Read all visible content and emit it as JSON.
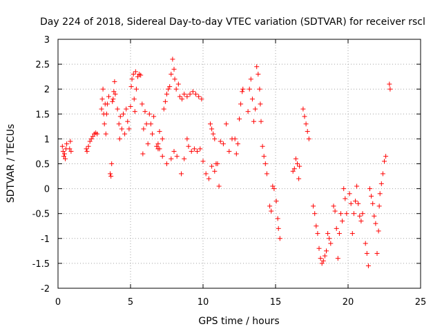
{
  "chart_data": {
    "type": "scatter",
    "title": "Day 224 of 2018, Sidereal Day-to-day VTEC variation (SDTVAR) for receiver rscl",
    "xlabel": "GPS time / hours",
    "ylabel": "SDTVAR / TECUs",
    "xlim": [
      0,
      25
    ],
    "ylim": [
      -2,
      3
    ],
    "xticks": [
      0,
      5,
      10,
      15,
      20,
      25
    ],
    "yticks": [
      -2,
      -1.5,
      -1,
      -0.5,
      0,
      0.5,
      1,
      1.5,
      2,
      2.5,
      3
    ],
    "xtick_labels": [
      "0",
      "5",
      "10",
      "15",
      "20",
      "25"
    ],
    "ytick_labels": [
      "-2",
      "-1.5",
      "-1",
      "-0.5",
      "0",
      "0.5",
      "1",
      "1.5",
      "2",
      "2.5",
      "3"
    ],
    "grid": true,
    "marker": "+",
    "color": "#ff0000",
    "series": [
      {
        "name": "SDTVAR",
        "points": [
          [
            0.3,
            0.85
          ],
          [
            0.35,
            0.75
          ],
          [
            0.4,
            0.65
          ],
          [
            0.45,
            0.7
          ],
          [
            0.5,
            0.6
          ],
          [
            0.55,
            0.8
          ],
          [
            0.6,
            0.9
          ],
          [
            0.8,
            0.8
          ],
          [
            0.85,
            0.95
          ],
          [
            0.9,
            0.75
          ],
          [
            1.95,
            0.8
          ],
          [
            2.0,
            0.75
          ],
          [
            2.1,
            0.85
          ],
          [
            2.2,
            0.95
          ],
          [
            2.3,
            1.0
          ],
          [
            2.4,
            1.05
          ],
          [
            2.5,
            1.1
          ],
          [
            2.6,
            1.12
          ],
          [
            2.7,
            1.1
          ],
          [
            3.0,
            1.6
          ],
          [
            3.05,
            1.8
          ],
          [
            3.1,
            2.0
          ],
          [
            3.15,
            1.5
          ],
          [
            3.2,
            1.3
          ],
          [
            3.25,
            1.7
          ],
          [
            3.3,
            1.1
          ],
          [
            3.35,
            1.5
          ],
          [
            3.4,
            1.7
          ],
          [
            3.5,
            1.85
          ],
          [
            3.6,
            0.3
          ],
          [
            3.65,
            0.25
          ],
          [
            3.7,
            0.5
          ],
          [
            3.75,
            1.75
          ],
          [
            3.8,
            1.8
          ],
          [
            3.85,
            1.95
          ],
          [
            3.9,
            2.15
          ],
          [
            3.95,
            1.9
          ],
          [
            4.1,
            1.6
          ],
          [
            4.2,
            1.3
          ],
          [
            4.25,
            1.0
          ],
          [
            4.3,
            1.45
          ],
          [
            4.4,
            1.2
          ],
          [
            4.5,
            1.5
          ],
          [
            4.6,
            1.1
          ],
          [
            4.7,
            1.6
          ],
          [
            4.8,
            1.35
          ],
          [
            4.9,
            1.2
          ],
          [
            5.0,
            1.65
          ],
          [
            5.05,
            2.05
          ],
          [
            5.1,
            2.2
          ],
          [
            5.2,
            2.3
          ],
          [
            5.25,
            1.8
          ],
          [
            5.3,
            1.55
          ],
          [
            5.35,
            2.35
          ],
          [
            5.4,
            2.0
          ],
          [
            5.5,
            2.25
          ],
          [
            5.6,
            2.3
          ],
          [
            5.7,
            2.28
          ],
          [
            5.8,
            1.7
          ],
          [
            5.85,
            0.7
          ],
          [
            5.9,
            1.2
          ],
          [
            6.0,
            1.55
          ],
          [
            6.1,
            1.3
          ],
          [
            6.2,
            0.9
          ],
          [
            6.3,
            1.5
          ],
          [
            6.4,
            1.3
          ],
          [
            6.5,
            1.1
          ],
          [
            6.6,
            1.45
          ],
          [
            6.8,
            0.85
          ],
          [
            6.9,
            0.8
          ],
          [
            7.0,
            1.15
          ],
          [
            7.2,
            1.0
          ],
          [
            7.3,
            1.6
          ],
          [
            7.4,
            1.75
          ],
          [
            7.5,
            1.9
          ],
          [
            7.6,
            2.0
          ],
          [
            7.7,
            2.05
          ],
          [
            7.8,
            2.3
          ],
          [
            7.9,
            2.6
          ],
          [
            8.0,
            2.4
          ],
          [
            8.05,
            2.2
          ],
          [
            8.15,
            2.0
          ],
          [
            8.3,
            2.1
          ],
          [
            8.4,
            1.85
          ],
          [
            8.55,
            1.8
          ],
          [
            8.7,
            1.9
          ],
          [
            8.9,
            1.85
          ],
          [
            9.1,
            1.9
          ],
          [
            9.3,
            1.95
          ],
          [
            9.5,
            1.9
          ],
          [
            9.7,
            1.85
          ],
          [
            9.9,
            1.8
          ],
          [
            6.9,
            0.9
          ],
          [
            7.0,
            0.8
          ],
          [
            7.2,
            0.65
          ],
          [
            7.5,
            0.5
          ],
          [
            7.8,
            0.6
          ],
          [
            8.0,
            0.75
          ],
          [
            8.2,
            0.65
          ],
          [
            8.5,
            0.3
          ],
          [
            8.7,
            0.6
          ],
          [
            8.9,
            1.0
          ],
          [
            9.0,
            0.85
          ],
          [
            9.2,
            0.75
          ],
          [
            9.4,
            0.8
          ],
          [
            9.6,
            0.75
          ],
          [
            9.8,
            0.8
          ],
          [
            10.0,
            0.55
          ],
          [
            10.2,
            0.3
          ],
          [
            10.4,
            0.2
          ],
          [
            10.6,
            0.45
          ],
          [
            10.8,
            0.35
          ],
          [
            11.0,
            0.5
          ],
          [
            10.5,
            1.3
          ],
          [
            10.6,
            1.2
          ],
          [
            10.7,
            1.1
          ],
          [
            10.8,
            1.0
          ],
          [
            10.9,
            0.5
          ],
          [
            11.1,
            0.05
          ],
          [
            11.2,
            0.95
          ],
          [
            11.4,
            0.9
          ],
          [
            11.6,
            1.3
          ],
          [
            11.8,
            0.75
          ],
          [
            12.0,
            1.0
          ],
          [
            12.2,
            1.0
          ],
          [
            12.3,
            0.7
          ],
          [
            12.4,
            0.9
          ],
          [
            12.5,
            1.4
          ],
          [
            12.6,
            1.7
          ],
          [
            12.7,
            1.95
          ],
          [
            12.75,
            2.0
          ],
          [
            13.1,
            1.55
          ],
          [
            13.2,
            2.0
          ],
          [
            13.3,
            2.2
          ],
          [
            13.4,
            1.8
          ],
          [
            13.5,
            1.35
          ],
          [
            13.6,
            1.6
          ],
          [
            13.7,
            2.45
          ],
          [
            13.8,
            2.3
          ],
          [
            13.9,
            2.0
          ],
          [
            13.95,
            1.7
          ],
          [
            14.0,
            1.35
          ],
          [
            14.1,
            0.85
          ],
          [
            14.2,
            0.65
          ],
          [
            14.3,
            0.5
          ],
          [
            14.4,
            0.3
          ],
          [
            14.6,
            -0.35
          ],
          [
            14.7,
            -0.45
          ],
          [
            14.8,
            0.05
          ],
          [
            14.9,
            0.0
          ],
          [
            15.05,
            -0.25
          ],
          [
            15.15,
            -0.6
          ],
          [
            15.2,
            -0.8
          ],
          [
            15.3,
            -1.0
          ],
          [
            16.2,
            0.35
          ],
          [
            16.3,
            0.4
          ],
          [
            16.4,
            0.6
          ],
          [
            16.5,
            0.5
          ],
          [
            16.6,
            0.2
          ],
          [
            16.65,
            0.45
          ],
          [
            16.9,
            1.6
          ],
          [
            17.0,
            1.45
          ],
          [
            17.1,
            1.3
          ],
          [
            17.2,
            1.15
          ],
          [
            17.3,
            1.0
          ],
          [
            17.6,
            -0.35
          ],
          [
            17.7,
            -0.5
          ],
          [
            17.8,
            -0.75
          ],
          [
            17.9,
            -0.9
          ],
          [
            18.0,
            -1.2
          ],
          [
            18.1,
            -1.4
          ],
          [
            18.2,
            -1.5
          ],
          [
            18.3,
            -1.45
          ],
          [
            18.4,
            -1.35
          ],
          [
            18.5,
            -1.25
          ],
          [
            18.6,
            -0.9
          ],
          [
            18.7,
            -1.0
          ],
          [
            18.8,
            -1.1
          ],
          [
            19.0,
            -0.35
          ],
          [
            19.1,
            -0.45
          ],
          [
            19.2,
            -0.8
          ],
          [
            19.3,
            -1.4
          ],
          [
            19.4,
            -0.9
          ],
          [
            19.5,
            -0.5
          ],
          [
            19.6,
            -0.65
          ],
          [
            19.7,
            0.0
          ],
          [
            19.8,
            -0.2
          ],
          [
            19.9,
            -0.5
          ],
          [
            20.1,
            -0.1
          ],
          [
            20.2,
            -0.3
          ],
          [
            20.3,
            -0.9
          ],
          [
            20.4,
            -0.5
          ],
          [
            20.5,
            -0.25
          ],
          [
            20.6,
            0.05
          ],
          [
            20.7,
            -0.3
          ],
          [
            20.8,
            -0.55
          ],
          [
            20.9,
            -0.65
          ],
          [
            21.0,
            -0.5
          ],
          [
            21.2,
            -1.1
          ],
          [
            21.3,
            -1.3
          ],
          [
            21.4,
            -1.55
          ],
          [
            21.5,
            0.0
          ],
          [
            21.6,
            -0.15
          ],
          [
            21.7,
            -0.3
          ],
          [
            21.8,
            -0.55
          ],
          [
            21.9,
            -0.7
          ],
          [
            22.0,
            -1.3
          ],
          [
            22.1,
            -0.85
          ],
          [
            22.15,
            -0.35
          ],
          [
            22.2,
            -0.1
          ],
          [
            22.3,
            0.1
          ],
          [
            22.4,
            0.3
          ],
          [
            22.5,
            0.55
          ],
          [
            22.6,
            0.65
          ],
          [
            22.85,
            2.1
          ],
          [
            22.9,
            2.0
          ]
        ]
      }
    ]
  }
}
